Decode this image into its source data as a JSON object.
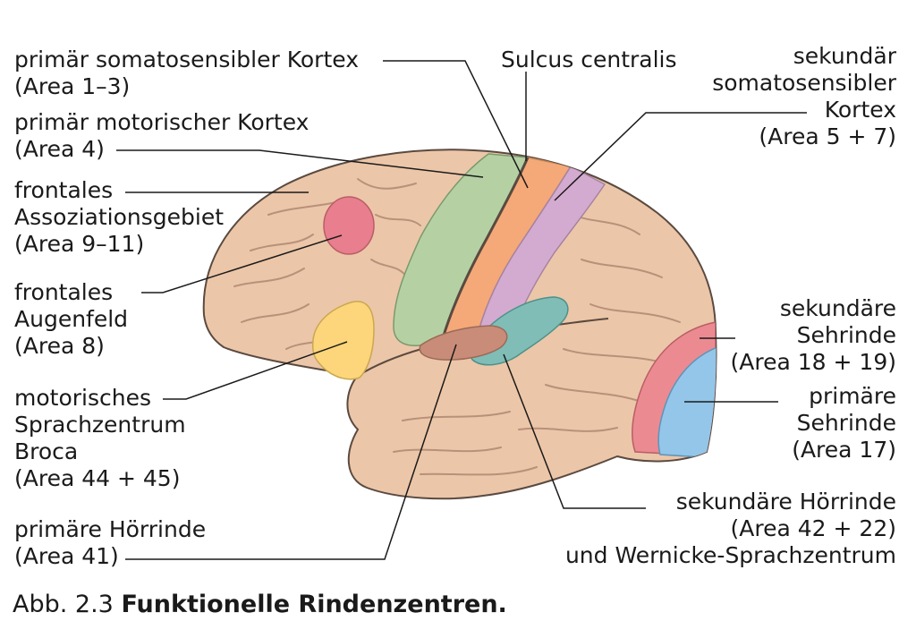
{
  "labels": {
    "primary_somatosensory": "primär somatosensibler Kortex\n(Area 1–3)",
    "primary_motor": "primär motorischer Kortex\n(Area 4)",
    "frontal_association": "frontales\nAssoziationsgebiet\n(Area 9–11)",
    "frontal_eye_field": "frontales\nAugenfeld\n(Area 8)",
    "broca": "motorisches\nSprachzentrum\nBroca\n(Area 44 + 45)",
    "primary_auditory": "primäre Hörrinde\n(Area 41)",
    "central_sulcus": "Sulcus centralis",
    "secondary_somatosensory": "sekundär\nsomatosensibler\nKortex\n(Area 5 + 7)",
    "secondary_visual": "sekundäre\nSehrinde\n(Area 18 + 19)",
    "primary_visual": "primäre\nSehrinde\n(Area 17)",
    "secondary_auditory_wernicke": "sekundäre Hörrinde\n(Area 42 + 22)\nund Wernicke-Sprachzentrum"
  },
  "caption": {
    "number": "Abb. 2.3",
    "text": "Funktionelle Rindenzentren."
  },
  "colors": {
    "brain": "#ecc6a8",
    "sulci": "#b8917a",
    "outline": "#5a4a40",
    "primary_motor": "#b5d1a4",
    "primary_somatosensory": "#f5a878",
    "secondary_somatosensory": "#d4abd0",
    "frontal_eye_field": "#e87e8e",
    "broca": "#fdd57a",
    "auditory_secondary": "#7fbdb6",
    "auditory_primary": "#c98c78",
    "visual_secondary": "#ec8a92",
    "visual_primary": "#93c6e8"
  }
}
